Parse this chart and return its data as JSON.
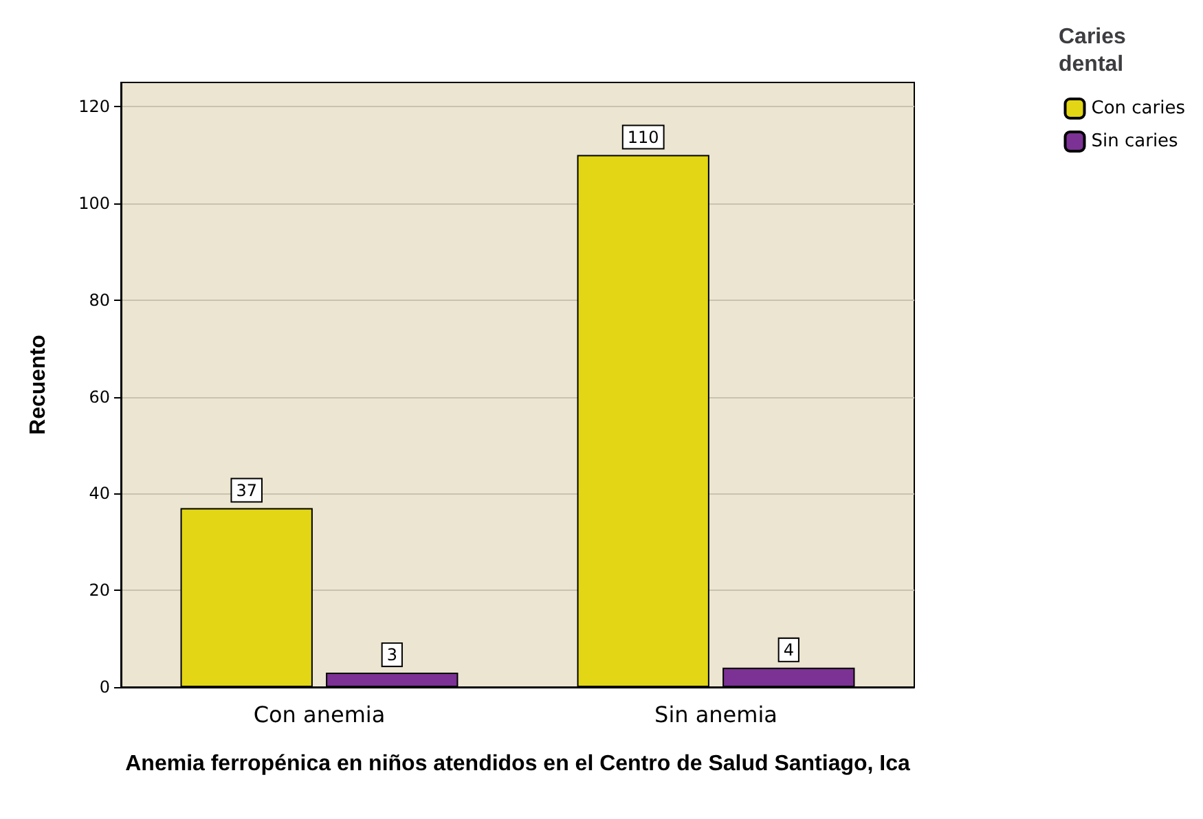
{
  "chart_data": {
    "type": "bar",
    "xlabel": "Anemia ferropénica en niños atendidos en el Centro de Salud Santiago, Ica",
    "ylabel": "Recuento",
    "legend_title": "Caries dental",
    "categories": [
      "Con anemia",
      "Sin anemia"
    ],
    "series": [
      {
        "name": "Con caries",
        "color": "#e3d614",
        "values": [
          37,
          110
        ]
      },
      {
        "name": "Sin caries",
        "color": "#7b3294",
        "values": [
          3,
          4
        ]
      }
    ],
    "ylim": [
      0,
      125
    ],
    "yticks": [
      0,
      20,
      40,
      60,
      80,
      100,
      120
    ],
    "grid": "y",
    "legend": "top right",
    "data_labels": true
  }
}
